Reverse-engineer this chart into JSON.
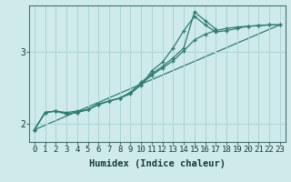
{
  "xlabel": "Humidex (Indice chaleur)",
  "bg_color": "#ceeaea",
  "line_color": "#2e7d72",
  "grid_color": "#afd4d4",
  "xlim": [
    -0.5,
    23.5
  ],
  "ylim": [
    1.75,
    3.65
  ],
  "yticks": [
    2,
    3
  ],
  "xticks": [
    0,
    1,
    2,
    3,
    4,
    5,
    6,
    7,
    8,
    9,
    10,
    11,
    12,
    13,
    14,
    15,
    16,
    17,
    18,
    19,
    20,
    21,
    22,
    23
  ],
  "line1_x": [
    0,
    1,
    2,
    3,
    4,
    5,
    6,
    7,
    8,
    9,
    10,
    11,
    12,
    13,
    14,
    15,
    16,
    17,
    18,
    19,
    20,
    21,
    22,
    23
  ],
  "line1_y": [
    1.92,
    2.16,
    2.18,
    2.16,
    2.18,
    2.2,
    2.28,
    2.32,
    2.36,
    2.42,
    2.55,
    2.68,
    2.78,
    2.88,
    3.02,
    3.17,
    3.25,
    3.3,
    3.33,
    3.35,
    3.36,
    3.37,
    3.38,
    3.38
  ],
  "line2_x": [
    0,
    1,
    2,
    3,
    4,
    5,
    6,
    7,
    8,
    9,
    10,
    11,
    12,
    13,
    14,
    15,
    16,
    17,
    18,
    19,
    20,
    21,
    22,
    23
  ],
  "line2_y": [
    1.92,
    2.16,
    2.18,
    2.14,
    2.16,
    2.2,
    2.27,
    2.32,
    2.36,
    2.44,
    2.54,
    2.74,
    2.86,
    3.06,
    3.3,
    3.5,
    3.38,
    3.28,
    3.3,
    3.33,
    3.36,
    3.37,
    3.38,
    3.38
  ],
  "line3_x": [
    0,
    1,
    2,
    3,
    4,
    5,
    6,
    7,
    8,
    9,
    10,
    11,
    12,
    13,
    14,
    15,
    16,
    17
  ],
  "line3_y": [
    1.92,
    2.16,
    2.18,
    2.14,
    2.16,
    2.2,
    2.27,
    2.32,
    2.36,
    2.44,
    2.58,
    2.7,
    2.8,
    2.92,
    3.06,
    3.56,
    3.44,
    3.32
  ],
  "line4_x": [
    0,
    23
  ],
  "line4_y": [
    1.92,
    3.38
  ],
  "marker": "+",
  "markersize": 3.5,
  "markeredgewidth": 1.0,
  "linewidth": 0.9,
  "xlabel_fontsize": 7.5,
  "tick_fontsize": 6.5
}
